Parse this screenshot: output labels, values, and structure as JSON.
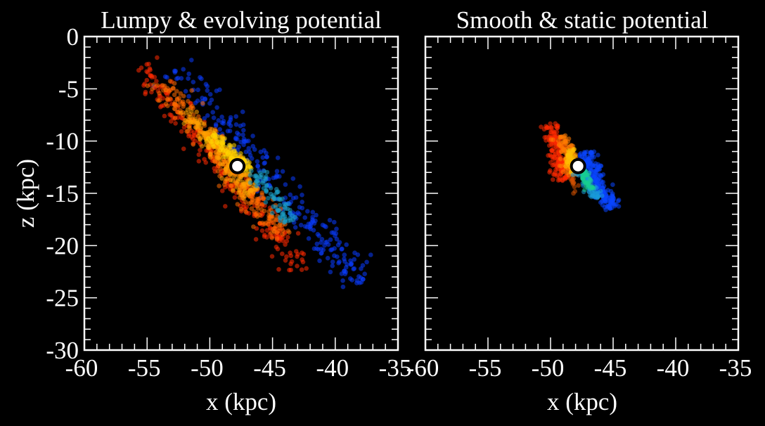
{
  "chart_data": [
    {
      "type": "scatter",
      "title": "Lumpy & evolving potential",
      "xlabel": "x (kpc)",
      "ylabel": "z (kpc)",
      "xlim": [
        -60,
        -35
      ],
      "ylim": [
        -30,
        0
      ],
      "xticks": [
        "-60",
        "-55",
        "-50",
        "-45",
        "-40",
        "-35"
      ],
      "yticks": [
        "0",
        "-5",
        "-10",
        "-15",
        "-20",
        "-25",
        "-30"
      ],
      "grid": false,
      "marker": {
        "x": -47.8,
        "z": -12.4,
        "label": "progenitor"
      },
      "clusters": [
        {
          "name": "leading-blue",
          "color": "#0a3cff",
          "count": 260,
          "start": [
            -53.5,
            -3.5
          ],
          "end": [
            -38.5,
            -24
          ],
          "spread": 0.7,
          "offset": 0.9
        },
        {
          "name": "trailing-red",
          "color": "#ff2a00",
          "count": 240,
          "start": [
            -55,
            -2.5
          ],
          "end": [
            -42,
            -22
          ],
          "spread": 0.6,
          "offset": -0.7
        },
        {
          "name": "orange",
          "color": "#ff6a00",
          "count": 260,
          "start": [
            -54,
            -4
          ],
          "end": [
            -44,
            -19
          ],
          "spread": 0.55,
          "offset": -0.2
        },
        {
          "name": "amber",
          "color": "#ffa000",
          "count": 220,
          "start": [
            -52,
            -7
          ],
          "end": [
            -46.5,
            -15
          ],
          "spread": 0.45,
          "offset": 0.0
        },
        {
          "name": "yellow",
          "color": "#ffd200",
          "count": 110,
          "start": [
            -50,
            -9.5
          ],
          "end": [
            -47,
            -13
          ],
          "spread": 0.35,
          "offset": 0.1
        },
        {
          "name": "teal",
          "color": "#1ba0c8",
          "count": 80,
          "start": [
            -47,
            -13
          ],
          "end": [
            -44,
            -18
          ],
          "spread": 0.4,
          "offset": 0.5
        }
      ]
    },
    {
      "type": "scatter",
      "title": "Smooth & static potential",
      "xlabel": "x (kpc)",
      "ylabel": "",
      "xlim": [
        -60,
        -35
      ],
      "ylim": [
        -30,
        0
      ],
      "xticks": [
        "-60",
        "-55",
        "-50",
        "-45",
        "-40",
        "-35"
      ],
      "yticks": [],
      "grid": false,
      "marker": {
        "x": -47.8,
        "z": -12.4,
        "label": "progenitor"
      },
      "clusters": [
        {
          "name": "red",
          "color": "#ff2a00",
          "count": 170,
          "start": [
            -50,
            -8.3
          ],
          "end": [
            -49,
            -13.8
          ],
          "spread": 0.35,
          "offset": 0.0
        },
        {
          "name": "orange",
          "color": "#ff7a00",
          "count": 110,
          "start": [
            -49,
            -9.5
          ],
          "end": [
            -48.3,
            -13.3
          ],
          "spread": 0.3,
          "offset": 0.0
        },
        {
          "name": "yellow",
          "color": "#ffc000",
          "count": 60,
          "start": [
            -48.5,
            -10.8
          ],
          "end": [
            -48,
            -13
          ],
          "spread": 0.22,
          "offset": 0.0
        },
        {
          "name": "blue",
          "color": "#0a46ff",
          "count": 200,
          "start": [
            -47.2,
            -11
          ],
          "end": [
            -45.2,
            -16.5
          ],
          "spread": 0.35,
          "offset": 0.0
        },
        {
          "name": "cyan",
          "color": "#1a9ad8",
          "count": 80,
          "start": [
            -47.6,
            -12.8
          ],
          "end": [
            -46.4,
            -15.5
          ],
          "spread": 0.3,
          "offset": 0.0
        },
        {
          "name": "green",
          "color": "#18d090",
          "count": 40,
          "start": [
            -47.5,
            -12.8
          ],
          "end": [
            -46.8,
            -14.6
          ],
          "spread": 0.2,
          "offset": 0.0
        },
        {
          "name": "amber-tail",
          "color": "#d05000",
          "count": 12,
          "start": [
            -48.3,
            -13.5
          ],
          "end": [
            -48,
            -15
          ],
          "spread": 0.15,
          "offset": 0.0
        }
      ]
    }
  ]
}
